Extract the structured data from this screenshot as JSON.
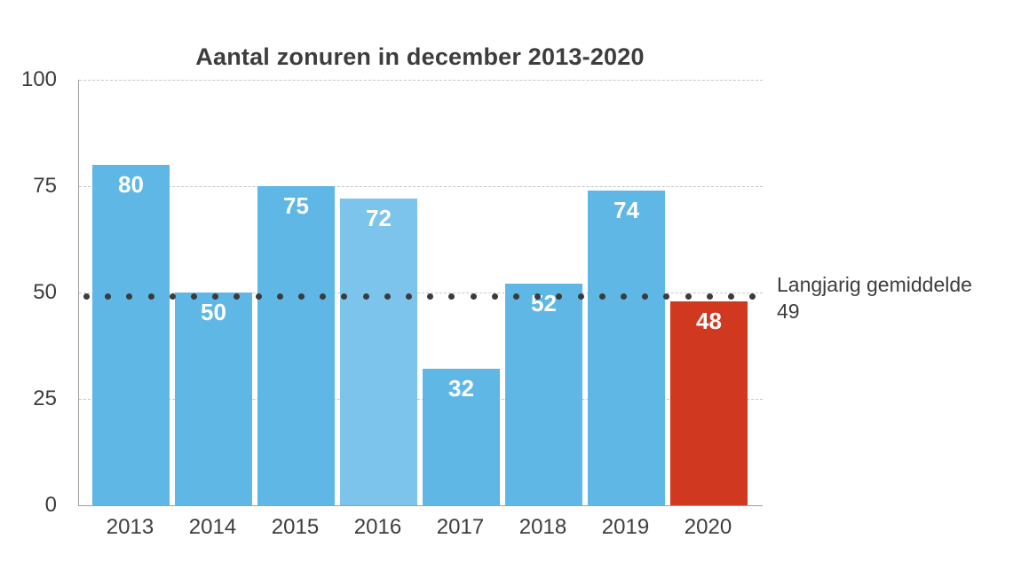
{
  "title": "Aantal zonuren in december 2013-2020",
  "annotation": {
    "label": "Langjarig gemiddelde",
    "value": "49"
  },
  "colors": {
    "bar_blue": "#5fb7e6",
    "bar_light_blue": "#7cc4ec",
    "bar_red": "#d0381f",
    "avg_dots": "#3b3b3b",
    "text": "#3d3d3d",
    "value_label": "#ffffff",
    "gridline": "#c8c8c8",
    "axis": "#9f9f9f"
  },
  "chart_data": {
    "type": "bar",
    "title": "Aantal zonuren in december 2013-2020",
    "categories": [
      "2013",
      "2014",
      "2015",
      "2016",
      "2017",
      "2018",
      "2019",
      "2020"
    ],
    "values": [
      80,
      50,
      75,
      72,
      32,
      52,
      74,
      48
    ],
    "bar_colors": [
      "#5fb7e6",
      "#5fb7e6",
      "#5fb7e6",
      "#7cc4ec",
      "#5fb7e6",
      "#5fb7e6",
      "#5fb7e6",
      "#d0381f"
    ],
    "xlabel": "",
    "ylabel": "",
    "ylim": [
      0,
      100
    ],
    "yticks": [
      0,
      25,
      50,
      75,
      100
    ],
    "grid": "horizontal-dashed",
    "legend_position": "none",
    "average_line": {
      "value": 49,
      "label": "Langjarig gemiddelde",
      "value_label": "49",
      "style": "dotted"
    }
  }
}
